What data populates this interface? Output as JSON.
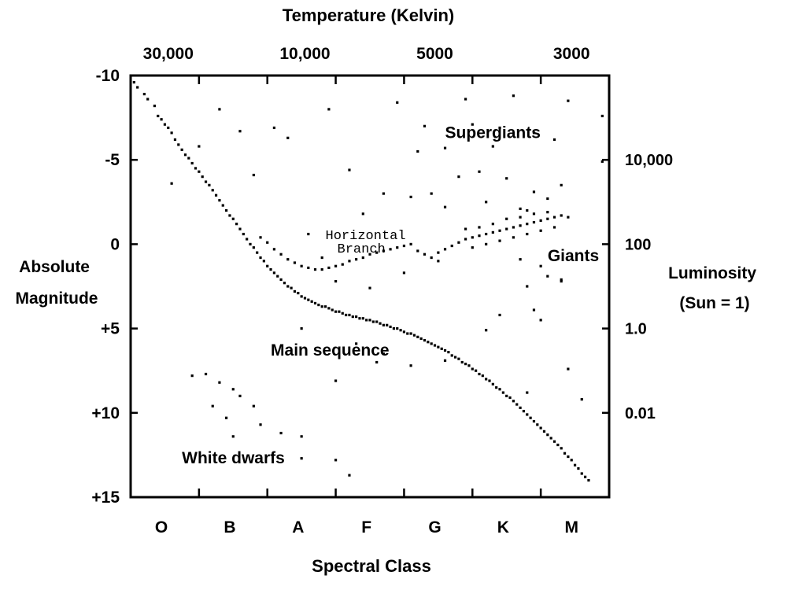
{
  "chart_data": {
    "type": "scatter",
    "title": "",
    "top_axis": {
      "label": "Temperature  (Kelvin)",
      "ticks": [
        {
          "label": "30,000",
          "spectral_pos": 0.55
        },
        {
          "label": "10,000",
          "spectral_pos": 2.55
        },
        {
          "label": "5000",
          "spectral_pos": 4.45
        },
        {
          "label": "3000",
          "spectral_pos": 6.45
        }
      ]
    },
    "x_axis": {
      "label": "Spectral Class",
      "categories": [
        "O",
        "B",
        "A",
        "F",
        "G",
        "K",
        "M"
      ],
      "range": [
        0,
        7
      ]
    },
    "y_axis": {
      "label_lines": [
        "Absolute",
        "Magnitude"
      ],
      "ticks": [
        -10,
        -5,
        0,
        5,
        10,
        15
      ],
      "tick_labels": [
        "-10",
        "-5",
        "0",
        "+5",
        "+10",
        "+15"
      ],
      "range": [
        -10,
        15
      ],
      "inverted": true
    },
    "right_axis": {
      "label_lines": [
        "Luminosity",
        "(Sun = 1)"
      ],
      "ticks": [
        {
          "label": "10,000",
          "magnitude": -5
        },
        {
          "label": "100",
          "magnitude": 0
        },
        {
          "label": "1.0",
          "magnitude": 5
        },
        {
          "label": "0.01",
          "magnitude": 10
        }
      ]
    },
    "annotations": [
      {
        "text": "Supergiants",
        "x": 4.6,
        "y": -6.3
      },
      {
        "text": "Giants",
        "x": 6.1,
        "y": 1.0
      },
      {
        "text": "Main sequence",
        "x": 2.05,
        "y": 6.6
      },
      {
        "text": "White dwarfs",
        "x": 0.75,
        "y": 13.0
      }
    ],
    "mono_annotation": {
      "lines": [
        "Horizontal",
        "Branch"
      ],
      "x": 2.85,
      "y": -0.3
    },
    "grid": false,
    "series": [
      {
        "points": [
          [
            0.05,
            -9.6
          ],
          [
            0.1,
            -9.3
          ],
          [
            0.2,
            -8.9
          ],
          [
            0.25,
            -8.6
          ],
          [
            0.35,
            -8.2
          ],
          [
            0.4,
            -7.6
          ],
          [
            0.45,
            -7.4
          ],
          [
            0.5,
            -7.1
          ],
          [
            0.55,
            -6.9
          ],
          [
            0.6,
            -6.6
          ],
          [
            0.65,
            -6.2
          ],
          [
            0.7,
            -5.9
          ],
          [
            0.75,
            -5.6
          ],
          [
            0.8,
            -5.3
          ],
          [
            0.85,
            -5.1
          ],
          [
            0.9,
            -4.8
          ],
          [
            0.95,
            -4.5
          ],
          [
            1.0,
            -4.3
          ],
          [
            1.05,
            -4.0
          ],
          [
            1.1,
            -3.7
          ],
          [
            1.15,
            -3.5
          ],
          [
            1.2,
            -3.2
          ],
          [
            1.25,
            -2.9
          ],
          [
            1.3,
            -2.6
          ],
          [
            1.35,
            -2.3
          ],
          [
            1.4,
            -2.0
          ],
          [
            1.45,
            -1.7
          ],
          [
            1.5,
            -1.5
          ],
          [
            1.55,
            -1.2
          ],
          [
            1.6,
            -0.9
          ],
          [
            1.65,
            -0.6
          ],
          [
            1.7,
            -0.3
          ],
          [
            1.75,
            0.0
          ],
          [
            1.8,
            0.2
          ],
          [
            1.85,
            0.5
          ],
          [
            1.9,
            0.8
          ],
          [
            1.95,
            1.0
          ],
          [
            2.0,
            1.3
          ],
          [
            2.05,
            1.5
          ],
          [
            2.1,
            1.7
          ],
          [
            2.15,
            1.9
          ],
          [
            2.2,
            2.1
          ],
          [
            2.25,
            2.3
          ],
          [
            2.3,
            2.5
          ],
          [
            2.35,
            2.6
          ],
          [
            2.4,
            2.8
          ],
          [
            2.45,
            2.9
          ],
          [
            2.5,
            3.1
          ],
          [
            2.55,
            3.2
          ],
          [
            2.6,
            3.3
          ],
          [
            2.65,
            3.4
          ],
          [
            2.7,
            3.5
          ],
          [
            2.75,
            3.6
          ],
          [
            2.8,
            3.7
          ],
          [
            2.85,
            3.7
          ],
          [
            2.9,
            3.8
          ],
          [
            2.95,
            3.9
          ],
          [
            3.0,
            4.0
          ],
          [
            3.05,
            4.0
          ],
          [
            3.1,
            4.1
          ],
          [
            3.15,
            4.2
          ],
          [
            3.2,
            4.2
          ],
          [
            3.25,
            4.3
          ],
          [
            3.3,
            4.3
          ],
          [
            3.35,
            4.4
          ],
          [
            3.4,
            4.4
          ],
          [
            3.45,
            4.5
          ],
          [
            3.5,
            4.5
          ],
          [
            3.55,
            4.6
          ],
          [
            3.6,
            4.6
          ],
          [
            3.65,
            4.7
          ],
          [
            3.7,
            4.8
          ],
          [
            3.75,
            4.8
          ],
          [
            3.8,
            4.9
          ],
          [
            3.85,
            5.0
          ],
          [
            3.9,
            5.0
          ],
          [
            3.95,
            5.1
          ],
          [
            4.0,
            5.2
          ],
          [
            4.05,
            5.3
          ],
          [
            4.1,
            5.3
          ],
          [
            4.15,
            5.4
          ],
          [
            4.2,
            5.5
          ],
          [
            4.25,
            5.6
          ],
          [
            4.3,
            5.7
          ],
          [
            4.35,
            5.8
          ],
          [
            4.4,
            5.9
          ],
          [
            4.45,
            6.0
          ],
          [
            4.5,
            6.1
          ],
          [
            4.55,
            6.2
          ],
          [
            4.6,
            6.3
          ],
          [
            4.65,
            6.4
          ],
          [
            4.7,
            6.6
          ],
          [
            4.75,
            6.7
          ],
          [
            4.8,
            6.8
          ],
          [
            4.85,
            7.0
          ],
          [
            4.9,
            7.1
          ],
          [
            4.95,
            7.2
          ],
          [
            5.0,
            7.4
          ],
          [
            5.05,
            7.5
          ],
          [
            5.1,
            7.7
          ],
          [
            5.15,
            7.8
          ],
          [
            5.2,
            8.0
          ],
          [
            5.25,
            8.1
          ],
          [
            5.3,
            8.3
          ],
          [
            5.35,
            8.5
          ],
          [
            5.4,
            8.6
          ],
          [
            5.45,
            8.8
          ],
          [
            5.5,
            9.0
          ],
          [
            5.55,
            9.1
          ],
          [
            5.6,
            9.3
          ],
          [
            5.65,
            9.5
          ],
          [
            5.7,
            9.7
          ],
          [
            5.75,
            9.9
          ],
          [
            5.8,
            10.1
          ],
          [
            5.85,
            10.3
          ],
          [
            5.9,
            10.5
          ],
          [
            5.95,
            10.7
          ],
          [
            6.0,
            10.9
          ],
          [
            6.05,
            11.1
          ],
          [
            6.1,
            11.3
          ],
          [
            6.15,
            11.5
          ],
          [
            6.2,
            11.7
          ],
          [
            6.25,
            11.9
          ],
          [
            6.3,
            12.1
          ],
          [
            6.35,
            12.4
          ],
          [
            6.4,
            12.6
          ],
          [
            6.45,
            12.8
          ],
          [
            6.5,
            13.1
          ],
          [
            6.55,
            13.3
          ],
          [
            6.6,
            13.6
          ],
          [
            6.65,
            13.8
          ],
          [
            6.7,
            14.0
          ]
        ]
      },
      {
        "points": [
          [
            1.9,
            -0.4
          ],
          [
            2.0,
            -0.1
          ],
          [
            2.1,
            0.3
          ],
          [
            2.2,
            0.6
          ],
          [
            2.3,
            0.9
          ],
          [
            2.4,
            1.1
          ],
          [
            2.5,
            1.3
          ],
          [
            2.6,
            1.4
          ],
          [
            2.7,
            1.5
          ],
          [
            2.8,
            1.5
          ],
          [
            2.9,
            1.4
          ],
          [
            3.0,
            1.3
          ],
          [
            3.1,
            1.2
          ],
          [
            3.2,
            1.0
          ],
          [
            3.3,
            0.9
          ],
          [
            3.4,
            0.8
          ],
          [
            3.5,
            0.6
          ],
          [
            3.6,
            0.5
          ],
          [
            3.7,
            0.4
          ],
          [
            3.8,
            0.3
          ],
          [
            3.9,
            0.2
          ],
          [
            4.0,
            0.1
          ],
          [
            4.1,
            0.0
          ],
          [
            4.2,
            0.4
          ],
          [
            4.3,
            0.6
          ],
          [
            4.4,
            0.8
          ],
          [
            4.5,
            1.0
          ]
        ]
      },
      {
        "points": [
          [
            4.5,
            0.5
          ],
          [
            4.6,
            0.3
          ],
          [
            4.7,
            0.1
          ],
          [
            4.8,
            -0.1
          ],
          [
            4.9,
            -0.3
          ],
          [
            5.0,
            -0.4
          ],
          [
            5.1,
            -0.5
          ],
          [
            5.2,
            -0.6
          ],
          [
            5.3,
            -0.7
          ],
          [
            5.4,
            -0.8
          ],
          [
            5.5,
            -0.9
          ],
          [
            5.6,
            -1.0
          ],
          [
            5.7,
            -1.1
          ],
          [
            5.8,
            -1.2
          ],
          [
            5.9,
            -1.3
          ],
          [
            6.0,
            -1.4
          ],
          [
            6.1,
            -1.5
          ],
          [
            6.2,
            -1.6
          ],
          [
            6.3,
            -1.7
          ],
          [
            6.4,
            -1.6
          ],
          [
            5.0,
            0.2
          ],
          [
            5.2,
            0.0
          ],
          [
            5.4,
            -0.2
          ],
          [
            5.6,
            -0.4
          ],
          [
            5.8,
            -0.6
          ],
          [
            6.0,
            -0.8
          ],
          [
            6.2,
            -1.0
          ],
          [
            5.1,
            -1.0
          ],
          [
            5.3,
            -1.2
          ],
          [
            5.5,
            -1.5
          ],
          [
            5.7,
            -1.6
          ],
          [
            5.9,
            -1.8
          ],
          [
            6.1,
            -1.9
          ],
          [
            4.9,
            -0.9
          ],
          [
            5.7,
            0.9
          ],
          [
            6.0,
            1.3
          ],
          [
            6.3,
            2.2
          ],
          [
            5.8,
            2.5
          ],
          [
            6.1,
            1.9
          ]
        ]
      },
      {
        "points": [
          [
            3.9,
            -8.4
          ],
          [
            4.9,
            -8.6
          ],
          [
            5.6,
            -8.8
          ],
          [
            6.4,
            -8.5
          ],
          [
            6.9,
            -7.6
          ],
          [
            5.0,
            -7.1
          ],
          [
            5.4,
            -6.9
          ],
          [
            5.9,
            -6.6
          ],
          [
            6.2,
            -6.2
          ],
          [
            4.2,
            -5.5
          ],
          [
            4.6,
            -5.7
          ],
          [
            5.1,
            -4.3
          ],
          [
            5.5,
            -3.9
          ],
          [
            5.9,
            -3.1
          ],
          [
            6.3,
            -3.5
          ],
          [
            4.1,
            -2.8
          ],
          [
            4.6,
            -2.2
          ],
          [
            5.2,
            -2.5
          ],
          [
            5.7,
            -2.1
          ],
          [
            6.1,
            -2.7
          ],
          [
            3.2,
            -4.4
          ],
          [
            2.9,
            -8.0
          ],
          [
            1.3,
            -8.0
          ],
          [
            1.6,
            -6.7
          ],
          [
            2.1,
            -6.9
          ],
          [
            2.3,
            -6.3
          ],
          [
            0.6,
            -3.6
          ],
          [
            1.0,
            -5.8
          ],
          [
            1.8,
            -4.1
          ],
          [
            6.9,
            -4.9
          ],
          [
            4.4,
            -3.0
          ]
        ]
      },
      {
        "points": [
          [
            0.9,
            7.8
          ],
          [
            1.1,
            7.7
          ],
          [
            1.3,
            8.2
          ],
          [
            1.5,
            8.6
          ],
          [
            1.2,
            9.6
          ],
          [
            1.4,
            10.3
          ],
          [
            1.8,
            9.6
          ],
          [
            1.9,
            10.7
          ],
          [
            2.2,
            11.2
          ],
          [
            2.5,
            11.4
          ],
          [
            2.5,
            12.7
          ],
          [
            3.0,
            12.8
          ],
          [
            3.2,
            13.7
          ],
          [
            1.5,
            11.4
          ],
          [
            3.0,
            8.1
          ],
          [
            1.6,
            9.0
          ]
        ]
      },
      {
        "points": [
          [
            4.3,
            -7.0
          ],
          [
            4.8,
            -4.0
          ],
          [
            5.3,
            -5.8
          ],
          [
            5.8,
            -2.0
          ],
          [
            3.7,
            -3.0
          ],
          [
            3.4,
            -1.8
          ],
          [
            2.6,
            -0.6
          ],
          [
            2.8,
            0.8
          ],
          [
            3.5,
            2.6
          ],
          [
            4.0,
            1.7
          ],
          [
            3.3,
            5.9
          ],
          [
            3.7,
            6.5
          ],
          [
            4.1,
            7.2
          ],
          [
            4.6,
            6.9
          ],
          [
            5.2,
            5.1
          ],
          [
            5.9,
            3.9
          ],
          [
            6.0,
            4.5
          ],
          [
            5.8,
            8.8
          ],
          [
            6.4,
            7.4
          ],
          [
            6.6,
            9.2
          ],
          [
            3.0,
            2.2
          ],
          [
            2.5,
            5.0
          ],
          [
            3.6,
            7.0
          ],
          [
            5.4,
            4.2
          ],
          [
            6.3,
            2.1
          ]
        ]
      }
    ]
  }
}
